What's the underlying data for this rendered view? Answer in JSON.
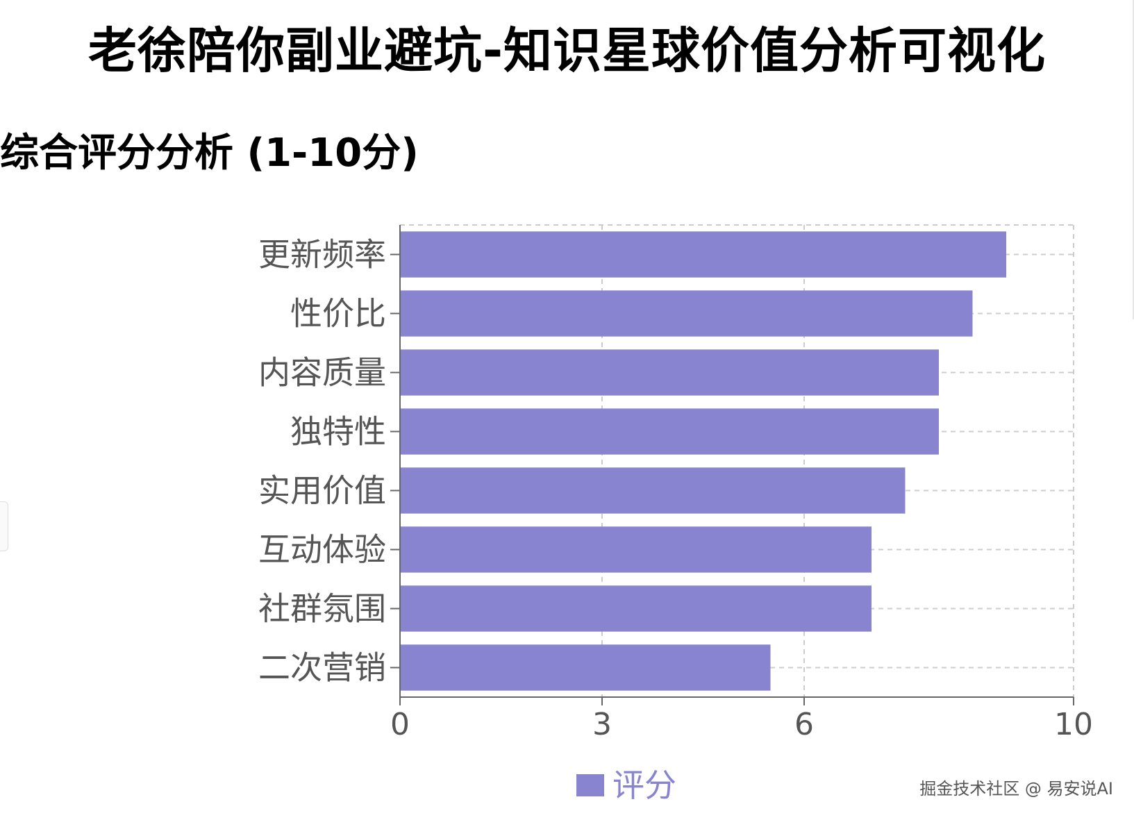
{
  "page": {
    "title": "老徐陪你副业避坑-知识星球价值分析可视化",
    "watermark": "掘金技术社区 @ 易安说AI"
  },
  "chart_data": {
    "type": "bar",
    "orientation": "horizontal",
    "title": "综合评分分析 (1-10分)",
    "xlabel": "",
    "ylabel": "",
    "categories": [
      "更新频率",
      "性价比",
      "内容质量",
      "独特性",
      "实用价值",
      "互动体验",
      "社群氛围",
      "二次营销"
    ],
    "series": [
      {
        "name": "评分",
        "values": [
          9,
          8.5,
          8,
          8,
          7.5,
          7,
          7,
          5.5
        ],
        "color": "#8884d0"
      }
    ],
    "xlim": [
      0,
      10
    ],
    "xticks": [
      0,
      3,
      6,
      10
    ],
    "xtick_labels": [
      "0",
      "3",
      "6",
      "10"
    ],
    "grid": true,
    "legend_position": "bottom-center"
  }
}
